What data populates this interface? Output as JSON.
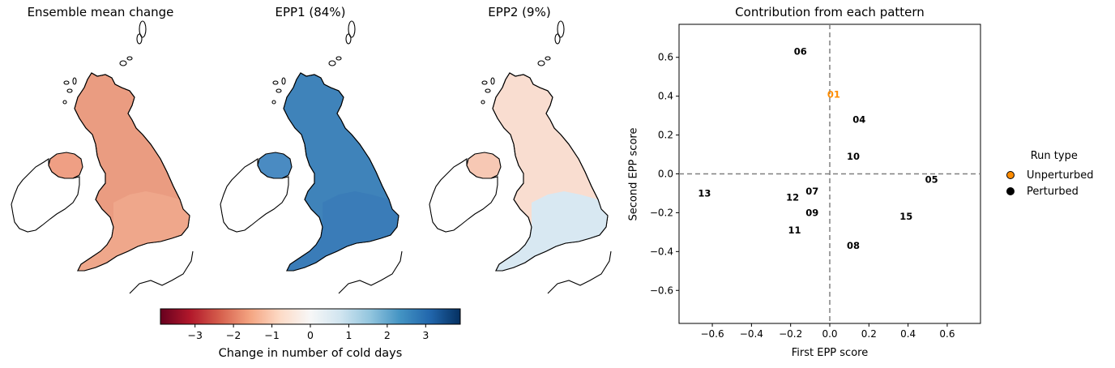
{
  "panels": [
    {
      "title": "Ensemble mean change",
      "gb_color": "#ea9c81",
      "gb_south_color": "#efa78b",
      "ni_color": "#ef9f84"
    },
    {
      "title": "EPP1 (84%)",
      "gb_color": "#3f83ba",
      "gb_south_color": "#3a7cb8",
      "ni_color": "#4a8bc2"
    },
    {
      "title": "EPP2 (9%)",
      "gb_color": "#f9ddd0",
      "gb_south_color": "#d8e8f2",
      "ni_color": "#f7c8b4"
    }
  ],
  "colorbar": {
    "label": "Change in number of cold days",
    "ticks": [
      "−3",
      "−2",
      "−1",
      "0",
      "1",
      "2",
      "3"
    ],
    "tick_values": [
      -3,
      -2,
      -1,
      0,
      1,
      2,
      3
    ],
    "range": [
      -3.9,
      3.9
    ],
    "colormap": "RdBu",
    "colors": [
      "#67001f",
      "#b2182b",
      "#d6604d",
      "#f4a582",
      "#fddbc7",
      "#f7f7f7",
      "#d1e5f0",
      "#92c5de",
      "#4393c3",
      "#2166ac",
      "#053061"
    ]
  },
  "chart_data": {
    "type": "scatter",
    "title": "Contribution from each pattern",
    "xlabel": "First EPP score",
    "ylabel": "Second EPP score",
    "xlim": [
      -0.77,
      0.77
    ],
    "ylim": [
      -0.77,
      0.77
    ],
    "x_ticks": [
      -0.6,
      -0.4,
      -0.2,
      0.0,
      0.2,
      0.4,
      0.6
    ],
    "x_tick_labels": [
      "−0.6",
      "−0.4",
      "−0.2",
      "0.0",
      "0.2",
      "0.4",
      "0.6"
    ],
    "y_ticks": [
      -0.6,
      -0.4,
      -0.2,
      0.0,
      0.2,
      0.4,
      0.6
    ],
    "y_tick_labels": [
      "−0.6",
      "−0.4",
      "−0.2",
      "0.0",
      "0.2",
      "0.4",
      "0.6"
    ],
    "reference_lines": {
      "x": 0,
      "y": 0,
      "style": "dashed",
      "color": "#808080"
    },
    "grid": false,
    "points": [
      {
        "label": "01",
        "x": 0.02,
        "y": 0.41,
        "type": "Unperturbed"
      },
      {
        "label": "04",
        "x": 0.15,
        "y": 0.28,
        "type": "Perturbed"
      },
      {
        "label": "05",
        "x": 0.52,
        "y": -0.03,
        "type": "Perturbed"
      },
      {
        "label": "06",
        "x": -0.15,
        "y": 0.63,
        "type": "Perturbed"
      },
      {
        "label": "07",
        "x": -0.09,
        "y": -0.09,
        "type": "Perturbed"
      },
      {
        "label": "08",
        "x": 0.12,
        "y": -0.37,
        "type": "Perturbed"
      },
      {
        "label": "09",
        "x": -0.09,
        "y": -0.2,
        "type": "Perturbed"
      },
      {
        "label": "10",
        "x": 0.12,
        "y": 0.09,
        "type": "Perturbed"
      },
      {
        "label": "11",
        "x": -0.18,
        "y": -0.29,
        "type": "Perturbed"
      },
      {
        "label": "12",
        "x": -0.19,
        "y": -0.12,
        "type": "Perturbed"
      },
      {
        "label": "13",
        "x": -0.64,
        "y": -0.1,
        "type": "Perturbed"
      },
      {
        "label": "15",
        "x": 0.39,
        "y": -0.22,
        "type": "Perturbed"
      }
    ],
    "legend": {
      "title": "Run type",
      "placement": "outside-right",
      "entries": [
        {
          "name": "Unperturbed",
          "color": "#ff8c00"
        },
        {
          "name": "Perturbed",
          "color": "#000000"
        }
      ]
    }
  }
}
